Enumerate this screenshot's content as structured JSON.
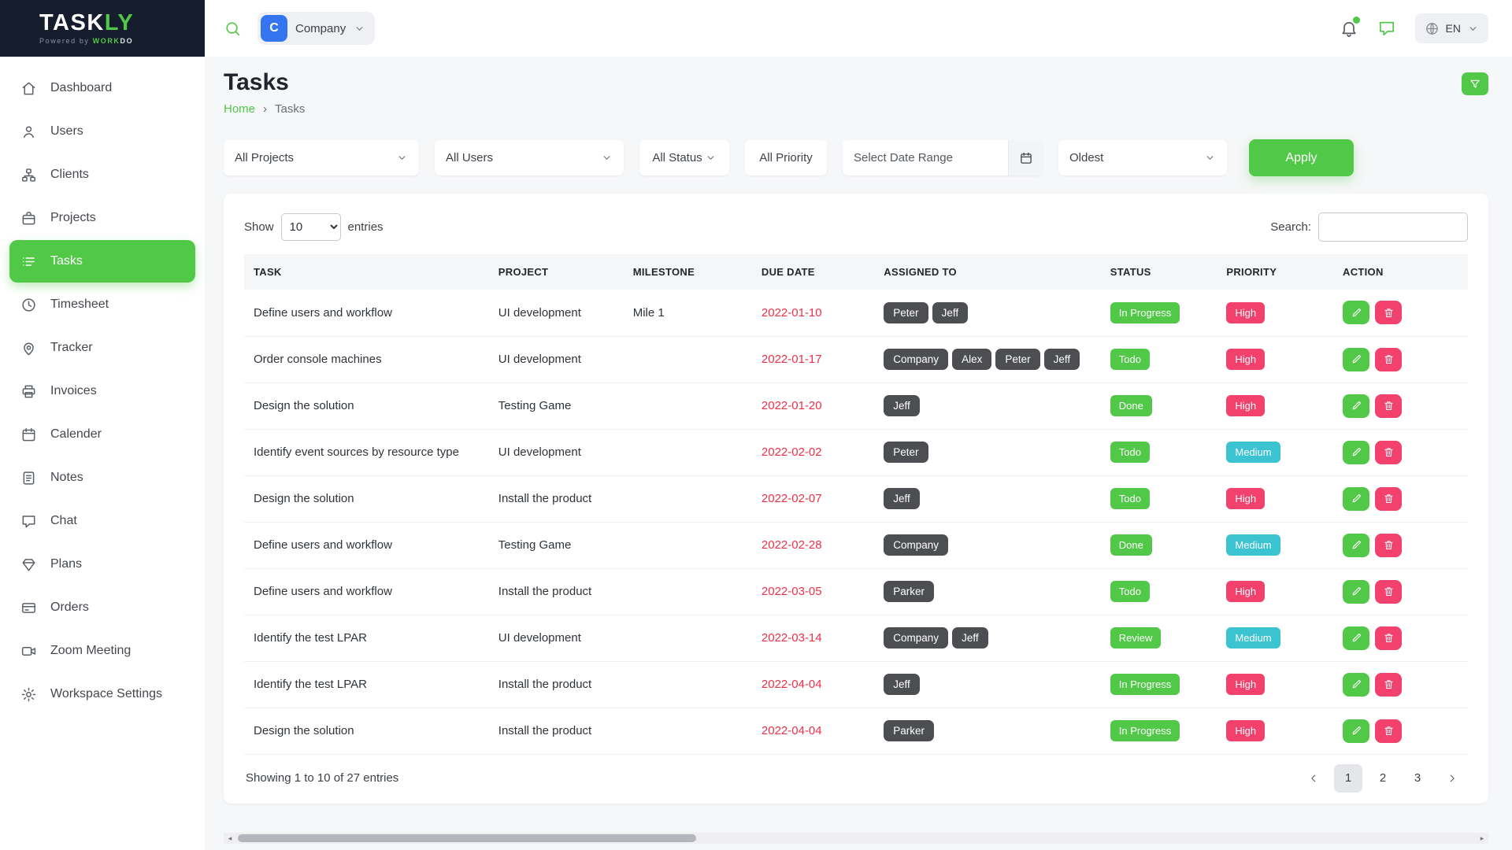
{
  "brand": {
    "logo_part1": "TASK",
    "logo_part2": "LY",
    "powered_prefix": "Powered by",
    "powered_part1": "WORK",
    "powered_part2": "DO"
  },
  "header": {
    "company_initial": "C",
    "company_label": "Company",
    "language": "EN",
    "icons": [
      "search-icon",
      "bell-icon",
      "chat-bubble-icon",
      "globe-icon",
      "chevron-down-icon"
    ]
  },
  "sidebar": {
    "items": [
      {
        "label": "Dashboard",
        "icon": "home",
        "active": false
      },
      {
        "label": "Users",
        "icon": "user",
        "active": false
      },
      {
        "label": "Clients",
        "icon": "clients",
        "active": false
      },
      {
        "label": "Projects",
        "icon": "projects",
        "active": false
      },
      {
        "label": "Tasks",
        "icon": "tasks",
        "active": true
      },
      {
        "label": "Timesheet",
        "icon": "clock",
        "active": false
      },
      {
        "label": "Tracker",
        "icon": "tracker",
        "active": false
      },
      {
        "label": "Invoices",
        "icon": "invoices",
        "active": false
      },
      {
        "label": "Calender",
        "icon": "calendar",
        "active": false
      },
      {
        "label": "Notes",
        "icon": "notes",
        "active": false
      },
      {
        "label": "Chat",
        "icon": "chat",
        "active": false
      },
      {
        "label": "Plans",
        "icon": "plans",
        "active": false
      },
      {
        "label": "Orders",
        "icon": "orders",
        "active": false
      },
      {
        "label": "Zoom Meeting",
        "icon": "video",
        "active": false
      },
      {
        "label": "Workspace Settings",
        "icon": "gear",
        "active": false
      }
    ]
  },
  "page": {
    "title": "Tasks",
    "breadcrumb_home": "Home",
    "breadcrumb_separator": "›",
    "breadcrumb_current": "Tasks"
  },
  "filters": {
    "projects": "All Projects",
    "users": "All Users",
    "status": "All Status",
    "priority": "All Priority",
    "date_range_placeholder": "Select Date Range",
    "sort": "Oldest",
    "apply_label": "Apply",
    "icons": [
      "chevron-down-icon",
      "calendar-icon",
      "funnel-icon"
    ]
  },
  "table": {
    "show_label": "Show",
    "page_length": "10",
    "entries_label": "entries",
    "search_label": "Search:",
    "columns": [
      "TASK",
      "PROJECT",
      "MILESTONE",
      "DUE DATE",
      "ASSIGNED TO",
      "STATUS",
      "PRIORITY",
      "ACTION"
    ],
    "rows": [
      {
        "task": "Define users and workflow",
        "project": "UI development",
        "milestone": "Mile 1",
        "due_date": "2022-01-10",
        "assigned": [
          "Peter",
          "Jeff"
        ],
        "status": "In Progress",
        "priority": "High"
      },
      {
        "task": "Order console machines",
        "project": "UI development",
        "milestone": "",
        "due_date": "2022-01-17",
        "assigned": [
          "Company",
          "Alex",
          "Peter",
          "Jeff"
        ],
        "status": "Todo",
        "priority": "High"
      },
      {
        "task": "Design the solution",
        "project": "Testing Game",
        "milestone": "",
        "due_date": "2022-01-20",
        "assigned": [
          "Jeff"
        ],
        "status": "Done",
        "priority": "High"
      },
      {
        "task": "Identify event sources by resource type",
        "project": "UI development",
        "milestone": "",
        "due_date": "2022-02-02",
        "assigned": [
          "Peter"
        ],
        "status": "Todo",
        "priority": "Medium"
      },
      {
        "task": "Design the solution",
        "project": "Install the product",
        "milestone": "",
        "due_date": "2022-02-07",
        "assigned": [
          "Jeff"
        ],
        "status": "Todo",
        "priority": "High"
      },
      {
        "task": "Define users and workflow",
        "project": "Testing Game",
        "milestone": "",
        "due_date": "2022-02-28",
        "assigned": [
          "Company"
        ],
        "status": "Done",
        "priority": "Medium"
      },
      {
        "task": "Define users and workflow",
        "project": "Install the product",
        "milestone": "",
        "due_date": "2022-03-05",
        "assigned": [
          "Parker"
        ],
        "status": "Todo",
        "priority": "High"
      },
      {
        "task": "Identify the test LPAR",
        "project": "UI development",
        "milestone": "",
        "due_date": "2022-03-14",
        "assigned": [
          "Company",
          "Jeff"
        ],
        "status": "Review",
        "priority": "Medium"
      },
      {
        "task": "Identify the test LPAR",
        "project": "Install the product",
        "milestone": "",
        "due_date": "2022-04-04",
        "assigned": [
          "Jeff"
        ],
        "status": "In Progress",
        "priority": "High"
      },
      {
        "task": "Design the solution",
        "project": "Install the product",
        "milestone": "",
        "due_date": "2022-04-04",
        "assigned": [
          "Parker"
        ],
        "status": "In Progress",
        "priority": "High"
      }
    ],
    "summary": "Showing 1 to 10 of 27 entries",
    "pagination": {
      "pages": [
        "1",
        "2",
        "3"
      ],
      "active_page": "1"
    },
    "icons": [
      "pencil-icon",
      "trash-icon",
      "chevron-left-icon",
      "chevron-right-icon"
    ]
  },
  "colors": {
    "accent_green": "#51c848",
    "priority_high": "#f1416c",
    "priority_medium": "#3bc3d2",
    "due_date_red": "#ee3049",
    "assignee_gray": "#4c4e52",
    "navy": "#161e2e",
    "avatar_blue": "#3575f0"
  }
}
